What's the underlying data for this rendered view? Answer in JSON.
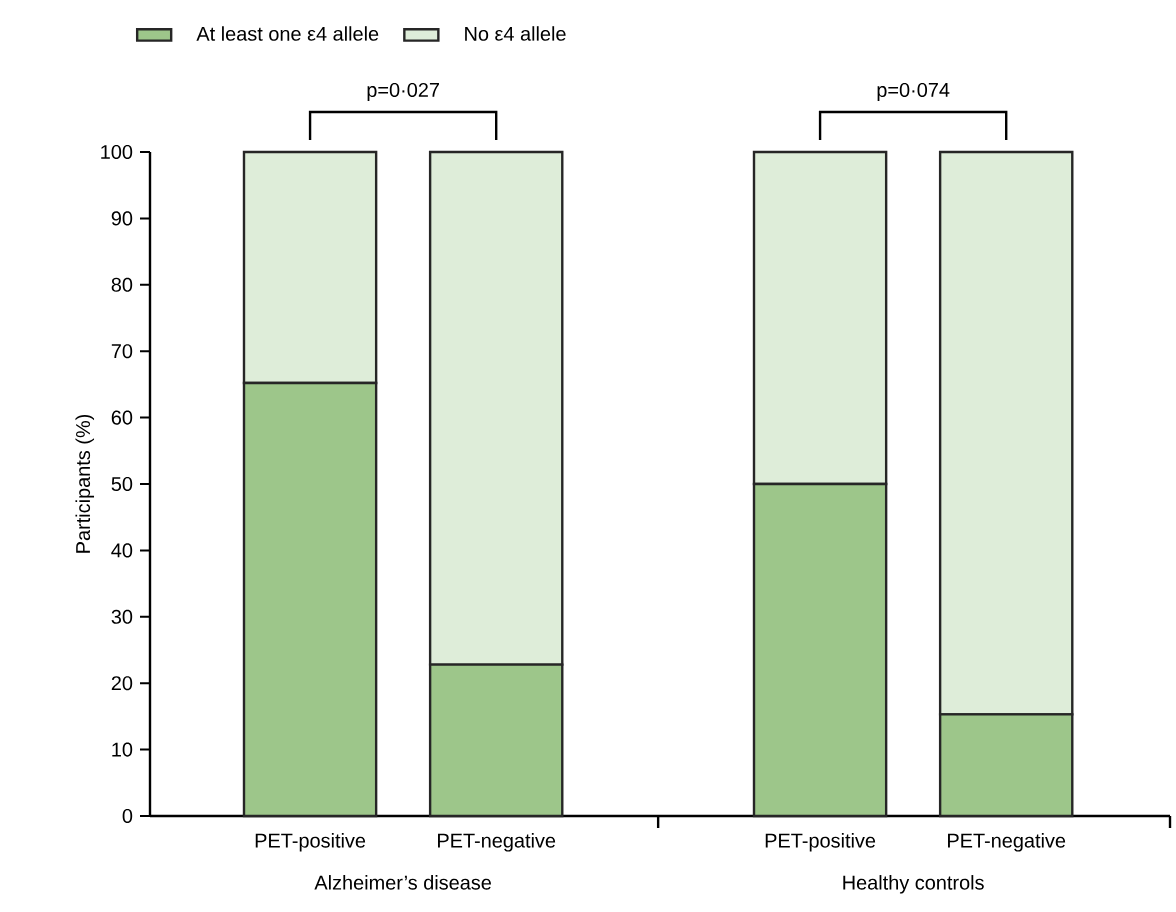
{
  "chart_data": {
    "type": "bar",
    "stacked": true,
    "categories": [
      "PET-positive",
      "PET-negative",
      "PET-positive",
      "PET-negative"
    ],
    "series": [
      {
        "name": "At least one ε4 allele",
        "color": "#9dc68a",
        "values": [
          65.2,
          22.8,
          50,
          15.3
        ]
      },
      {
        "name": "No ε4 allele",
        "color": "#deedd9",
        "values": [
          34.8,
          77.2,
          50,
          84.7
        ]
      }
    ],
    "ylabel": "Participants (%)",
    "ylim": [
      0,
      100
    ],
    "yticks": [
      0,
      10,
      20,
      30,
      40,
      50,
      60,
      70,
      80,
      90,
      100
    ],
    "legend": "top left",
    "annotations": [
      "p=0·027",
      "p=0·074",
      "Alzheimer’s disease",
      "Healthy controls"
    ]
  }
}
